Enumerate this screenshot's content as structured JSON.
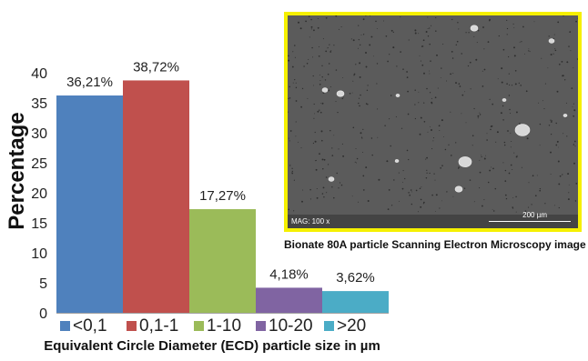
{
  "chart_data": {
    "type": "bar",
    "categories": [
      "<0,1",
      "0,1-1",
      "1-10",
      "10-20",
      ">20"
    ],
    "values": [
      36.21,
      38.72,
      17.27,
      4.18,
      3.62
    ],
    "data_labels": [
      "36,21%",
      "38,72%",
      "17,27%",
      "4,18%",
      "3,62%"
    ],
    "colors": [
      "#4f81bd",
      "#c0504d",
      "#9bbb59",
      "#8064a2",
      "#4bacc6"
    ],
    "ylabel": "Percentage",
    "xlabel": "Equivalent Circle Diameter (ECD) particle size in µm",
    "ylim": [
      0,
      40
    ],
    "yticks": [
      "0",
      "5",
      "10",
      "15",
      "20",
      "25",
      "30",
      "35",
      "40"
    ],
    "grid": false,
    "legend_position": "bottom"
  },
  "sem_image": {
    "mag_label": "MAG: 100 x",
    "scale_label": "200 µm",
    "caption": "Bionate 80A particle Scanning Electron Microscopy image",
    "border_color": "#f5f000"
  }
}
